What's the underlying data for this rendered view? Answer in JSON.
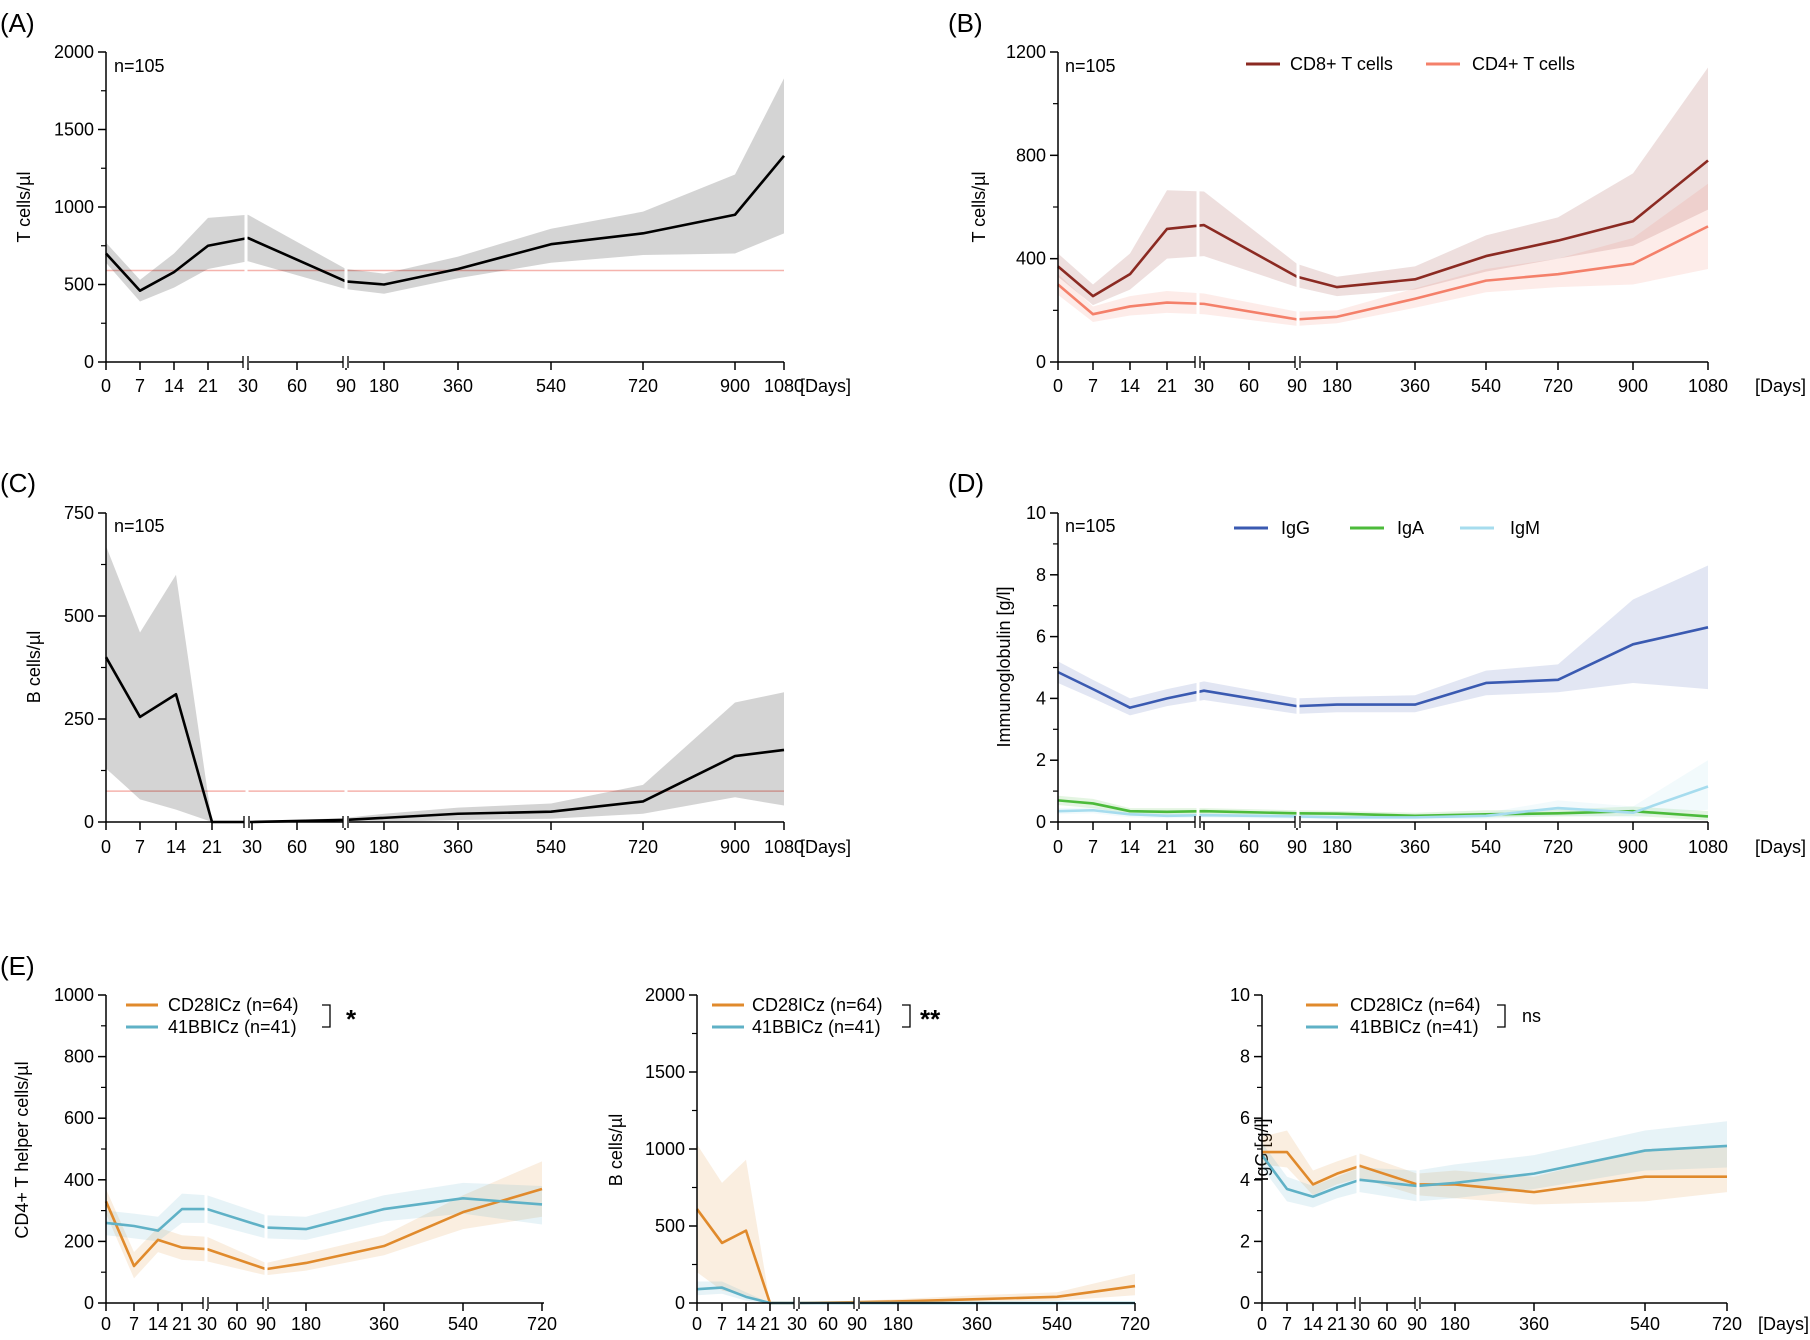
{
  "chart_data": [
    {
      "panel": "(A)",
      "type": "line",
      "ylabel": "T cells/µl",
      "annotation": "n=105",
      "x_unit": "[Days]",
      "ylim": [
        0,
        2000
      ],
      "yticks": [
        0,
        500,
        1000,
        1500,
        2000
      ],
      "categories": [
        "0",
        "7",
        "14",
        "21",
        "30",
        "60",
        "90",
        "180",
        "360",
        "540",
        "720",
        "900",
        "1080"
      ],
      "reference_line": 590,
      "series": [
        {
          "color": "#000000",
          "values": [
            700,
            460,
            580,
            750,
            800,
            null,
            520,
            500,
            600,
            760,
            830,
            950,
            1330
          ],
          "lower": [
            640,
            390,
            480,
            600,
            650,
            null,
            470,
            440,
            540,
            640,
            690,
            700,
            830
          ],
          "upper": [
            770,
            530,
            700,
            930,
            950,
            null,
            600,
            570,
            680,
            860,
            970,
            1210,
            1830
          ]
        }
      ]
    },
    {
      "panel": "(B)",
      "type": "line",
      "ylabel": "T cells/µl",
      "annotation": "n=105",
      "x_unit": "[Days]",
      "ylim": [
        0,
        1200
      ],
      "yticks": [
        0,
        400,
        800,
        1200
      ],
      "categories": [
        "0",
        "7",
        "14",
        "21",
        "30",
        "60",
        "90",
        "180",
        "360",
        "540",
        "720",
        "900",
        "1080"
      ],
      "series": [
        {
          "name": "CD8+ T cells",
          "color": "#8b2a22",
          "values": [
            370,
            255,
            340,
            515,
            530,
            null,
            330,
            290,
            320,
            410,
            470,
            545,
            780
          ],
          "lower": [
            330,
            220,
            280,
            400,
            410,
            null,
            290,
            255,
            280,
            350,
            400,
            450,
            590
          ],
          "upper": [
            420,
            300,
            420,
            665,
            660,
            null,
            380,
            330,
            370,
            490,
            560,
            730,
            1140
          ]
        },
        {
          "name": "CD4+ T cells",
          "color": "#f4806a",
          "values": [
            300,
            185,
            215,
            230,
            225,
            null,
            165,
            175,
            245,
            315,
            340,
            380,
            525
          ],
          "lower": [
            260,
            155,
            180,
            190,
            185,
            null,
            140,
            150,
            210,
            270,
            290,
            300,
            360
          ],
          "upper": [
            340,
            215,
            255,
            275,
            265,
            null,
            195,
            200,
            285,
            360,
            400,
            480,
            690
          ]
        }
      ]
    },
    {
      "panel": "(C)",
      "type": "line",
      "ylabel": "B cells/µl",
      "annotation": "n=105",
      "x_unit": "[Days]",
      "ylim": [
        0,
        750
      ],
      "yticks": [
        0,
        250,
        500,
        750
      ],
      "categories": [
        "0",
        "7",
        "14",
        "21",
        "30",
        "60",
        "90",
        "180",
        "360",
        "540",
        "720",
        "900",
        "1080"
      ],
      "reference_line": 75,
      "series": [
        {
          "color": "#000000",
          "values": [
            400,
            255,
            310,
            0,
            0,
            null,
            5,
            10,
            20,
            25,
            50,
            160,
            175
          ],
          "lower": [
            130,
            55,
            30,
            0,
            0,
            null,
            0,
            0,
            5,
            8,
            20,
            60,
            40
          ],
          "upper": [
            670,
            460,
            600,
            0,
            0,
            null,
            10,
            20,
            35,
            45,
            90,
            290,
            315
          ]
        }
      ]
    },
    {
      "panel": "(D)",
      "type": "line",
      "ylabel": "Immunoglobulin [g/l]",
      "annotation": "n=105",
      "x_unit": "[Days]",
      "ylim": [
        0,
        10
      ],
      "yticks": [
        0,
        2,
        4,
        6,
        8,
        10
      ],
      "categories": [
        "0",
        "7",
        "14",
        "21",
        "30",
        "60",
        "90",
        "180",
        "360",
        "540",
        "720",
        "900",
        "1080"
      ],
      "series": [
        {
          "name": "IgG",
          "color": "#3a5ab1",
          "values": [
            4.85,
            4.3,
            3.7,
            4.0,
            4.25,
            null,
            3.75,
            3.8,
            3.8,
            4.5,
            4.6,
            5.75,
            6.3
          ],
          "lower": [
            4.5,
            4.0,
            3.45,
            3.75,
            3.95,
            null,
            3.5,
            3.55,
            3.55,
            4.1,
            4.2,
            4.5,
            4.3
          ],
          "upper": [
            5.2,
            4.6,
            4.0,
            4.3,
            4.55,
            null,
            4.0,
            4.05,
            4.1,
            4.9,
            5.1,
            7.2,
            8.3
          ]
        },
        {
          "name": "IgA",
          "color": "#4cbb3b",
          "values": [
            0.7,
            0.6,
            0.35,
            0.33,
            0.35,
            null,
            0.28,
            0.27,
            0.2,
            0.25,
            0.28,
            0.35,
            0.18
          ],
          "lower": [
            0.55,
            0.45,
            0.25,
            0.22,
            0.25,
            null,
            0.2,
            0.18,
            0.12,
            0.15,
            0.18,
            0.2,
            0.05
          ],
          "upper": [
            0.85,
            0.75,
            0.45,
            0.45,
            0.45,
            null,
            0.38,
            0.36,
            0.3,
            0.38,
            0.4,
            0.5,
            0.35
          ]
        },
        {
          "name": "IgM",
          "color": "#a6dcee",
          "values": [
            0.35,
            0.38,
            0.25,
            0.2,
            0.22,
            null,
            0.18,
            0.15,
            0.15,
            0.2,
            0.45,
            0.3,
            1.15
          ],
          "lower": [
            0.25,
            0.28,
            0.15,
            0.12,
            0.14,
            null,
            0.1,
            0.08,
            0.08,
            0.1,
            0.2,
            0.15,
            0.4
          ],
          "upper": [
            0.45,
            0.48,
            0.35,
            0.3,
            0.3,
            null,
            0.28,
            0.25,
            0.25,
            0.3,
            0.7,
            0.5,
            2.0
          ]
        }
      ]
    },
    {
      "panel": "(E)",
      "type": "line",
      "ylabel": "CD4+ T helper cells/µl",
      "ylim": [
        0,
        1000
      ],
      "yticks": [
        0,
        200,
        400,
        600,
        800,
        1000
      ],
      "categories": [
        "0",
        "7",
        "14",
        "21",
        "30",
        "60",
        "90",
        "180",
        "360",
        "540",
        "720"
      ],
      "significance": "*",
      "series": [
        {
          "name": "CD28ICz (n=64)",
          "color": "#e08a2c",
          "values": [
            330,
            120,
            205,
            180,
            175,
            null,
            110,
            130,
            185,
            295,
            370
          ],
          "lower": [
            290,
            80,
            165,
            140,
            135,
            null,
            90,
            105,
            155,
            240,
            280
          ],
          "upper": [
            370,
            165,
            245,
            220,
            215,
            null,
            130,
            160,
            220,
            350,
            460
          ]
        },
        {
          "name": "41BBICz (n=41)",
          "color": "#5fb1c6",
          "values": [
            260,
            250,
            235,
            305,
            305,
            null,
            245,
            240,
            305,
            340,
            320
          ],
          "lower": [
            220,
            210,
            200,
            260,
            260,
            null,
            210,
            205,
            265,
            290,
            255
          ],
          "upper": [
            300,
            290,
            280,
            355,
            350,
            null,
            285,
            280,
            350,
            390,
            380
          ]
        }
      ]
    },
    {
      "type": "line",
      "ylabel": "B cells/µl",
      "ylim": [
        0,
        2000
      ],
      "yticks": [
        0,
        500,
        1000,
        1500,
        2000
      ],
      "categories": [
        "0",
        "7",
        "14",
        "21",
        "30",
        "60",
        "90",
        "180",
        "360",
        "540",
        "720"
      ],
      "significance": "**",
      "series": [
        {
          "name": "CD28ICz (n=64)",
          "color": "#e08a2c",
          "values": [
            610,
            390,
            470,
            0,
            0,
            null,
            5,
            10,
            25,
            40,
            110
          ],
          "lower": [
            200,
            80,
            50,
            0,
            0,
            null,
            0,
            0,
            8,
            15,
            50
          ],
          "upper": [
            1030,
            780,
            930,
            0,
            0,
            null,
            15,
            25,
            50,
            70,
            190
          ]
        },
        {
          "name": "41BBICz (n=41)",
          "color": "#5fb1c6",
          "values": [
            90,
            100,
            40,
            0,
            0,
            null,
            0,
            0,
            0,
            0,
            0
          ],
          "lower": [
            50,
            60,
            15,
            0,
            0,
            null,
            0,
            0,
            0,
            0,
            0
          ],
          "upper": [
            140,
            140,
            70,
            0,
            0,
            null,
            5,
            5,
            5,
            5,
            5
          ]
        }
      ]
    },
    {
      "type": "line",
      "ylabel": "IgG [g/l]",
      "x_unit": "[Days]",
      "ylim": [
        0,
        10
      ],
      "yticks": [
        0,
        2,
        4,
        6,
        8,
        10
      ],
      "categories": [
        "0",
        "7",
        "14",
        "21",
        "30",
        "60",
        "90",
        "180",
        "360",
        "540",
        "720"
      ],
      "significance": "ns",
      "series": [
        {
          "name": "CD28ICz (n=64)",
          "color": "#e08a2c",
          "values": [
            4.9,
            4.9,
            3.85,
            4.2,
            4.45,
            null,
            3.85,
            3.85,
            3.6,
            4.1,
            4.1
          ],
          "lower": [
            4.5,
            4.4,
            3.5,
            3.85,
            4.05,
            null,
            3.5,
            3.4,
            3.2,
            3.3,
            3.6
          ],
          "upper": [
            5.4,
            5.6,
            4.3,
            4.6,
            4.85,
            null,
            4.2,
            4.3,
            4.1,
            5.0,
            5.1
          ]
        },
        {
          "name": "41BBICz (n=41)",
          "color": "#5fb1c6",
          "values": [
            4.8,
            3.7,
            3.45,
            3.75,
            4.0,
            null,
            3.8,
            3.9,
            4.2,
            4.95,
            5.1
          ],
          "lower": [
            4.4,
            3.3,
            3.1,
            3.4,
            3.6,
            null,
            3.3,
            3.4,
            3.7,
            4.3,
            4.4
          ],
          "upper": [
            5.2,
            4.1,
            3.8,
            4.1,
            4.4,
            null,
            4.3,
            4.5,
            4.8,
            5.6,
            5.9
          ]
        }
      ]
    }
  ]
}
